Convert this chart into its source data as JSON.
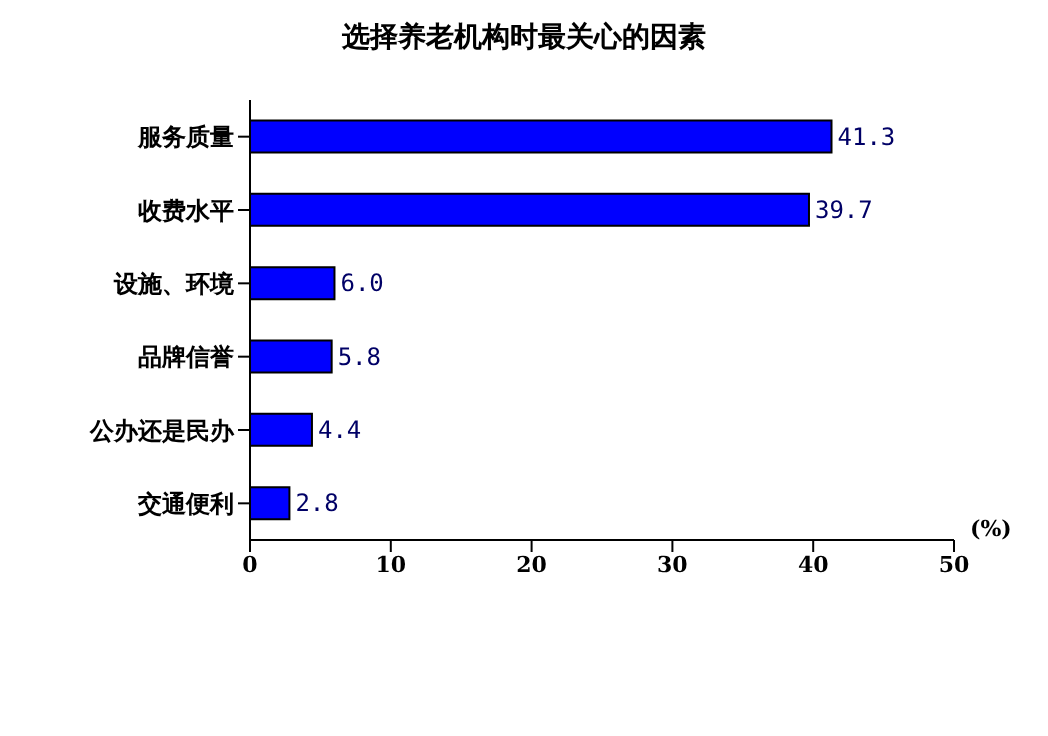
{
  "chart_data": {
    "type": "bar",
    "orientation": "horizontal",
    "title": "选择养老机构时最关心的因素",
    "xlabel": "(%)",
    "categories": [
      "服务质量",
      "收费水平",
      "设施、环境",
      "品牌信誉",
      "公办还是民办",
      "交通便利"
    ],
    "values": [
      41.3,
      39.7,
      6.0,
      5.8,
      4.4,
      2.8
    ],
    "value_labels": [
      "41.3",
      "39.7",
      "6.0",
      "5.8",
      "4.4",
      "2.8"
    ],
    "color": "#0000ff",
    "xlim": [
      0,
      50
    ],
    "xticks": [
      0,
      10,
      20,
      30,
      40,
      50
    ],
    "grid": false,
    "legend": false
  }
}
